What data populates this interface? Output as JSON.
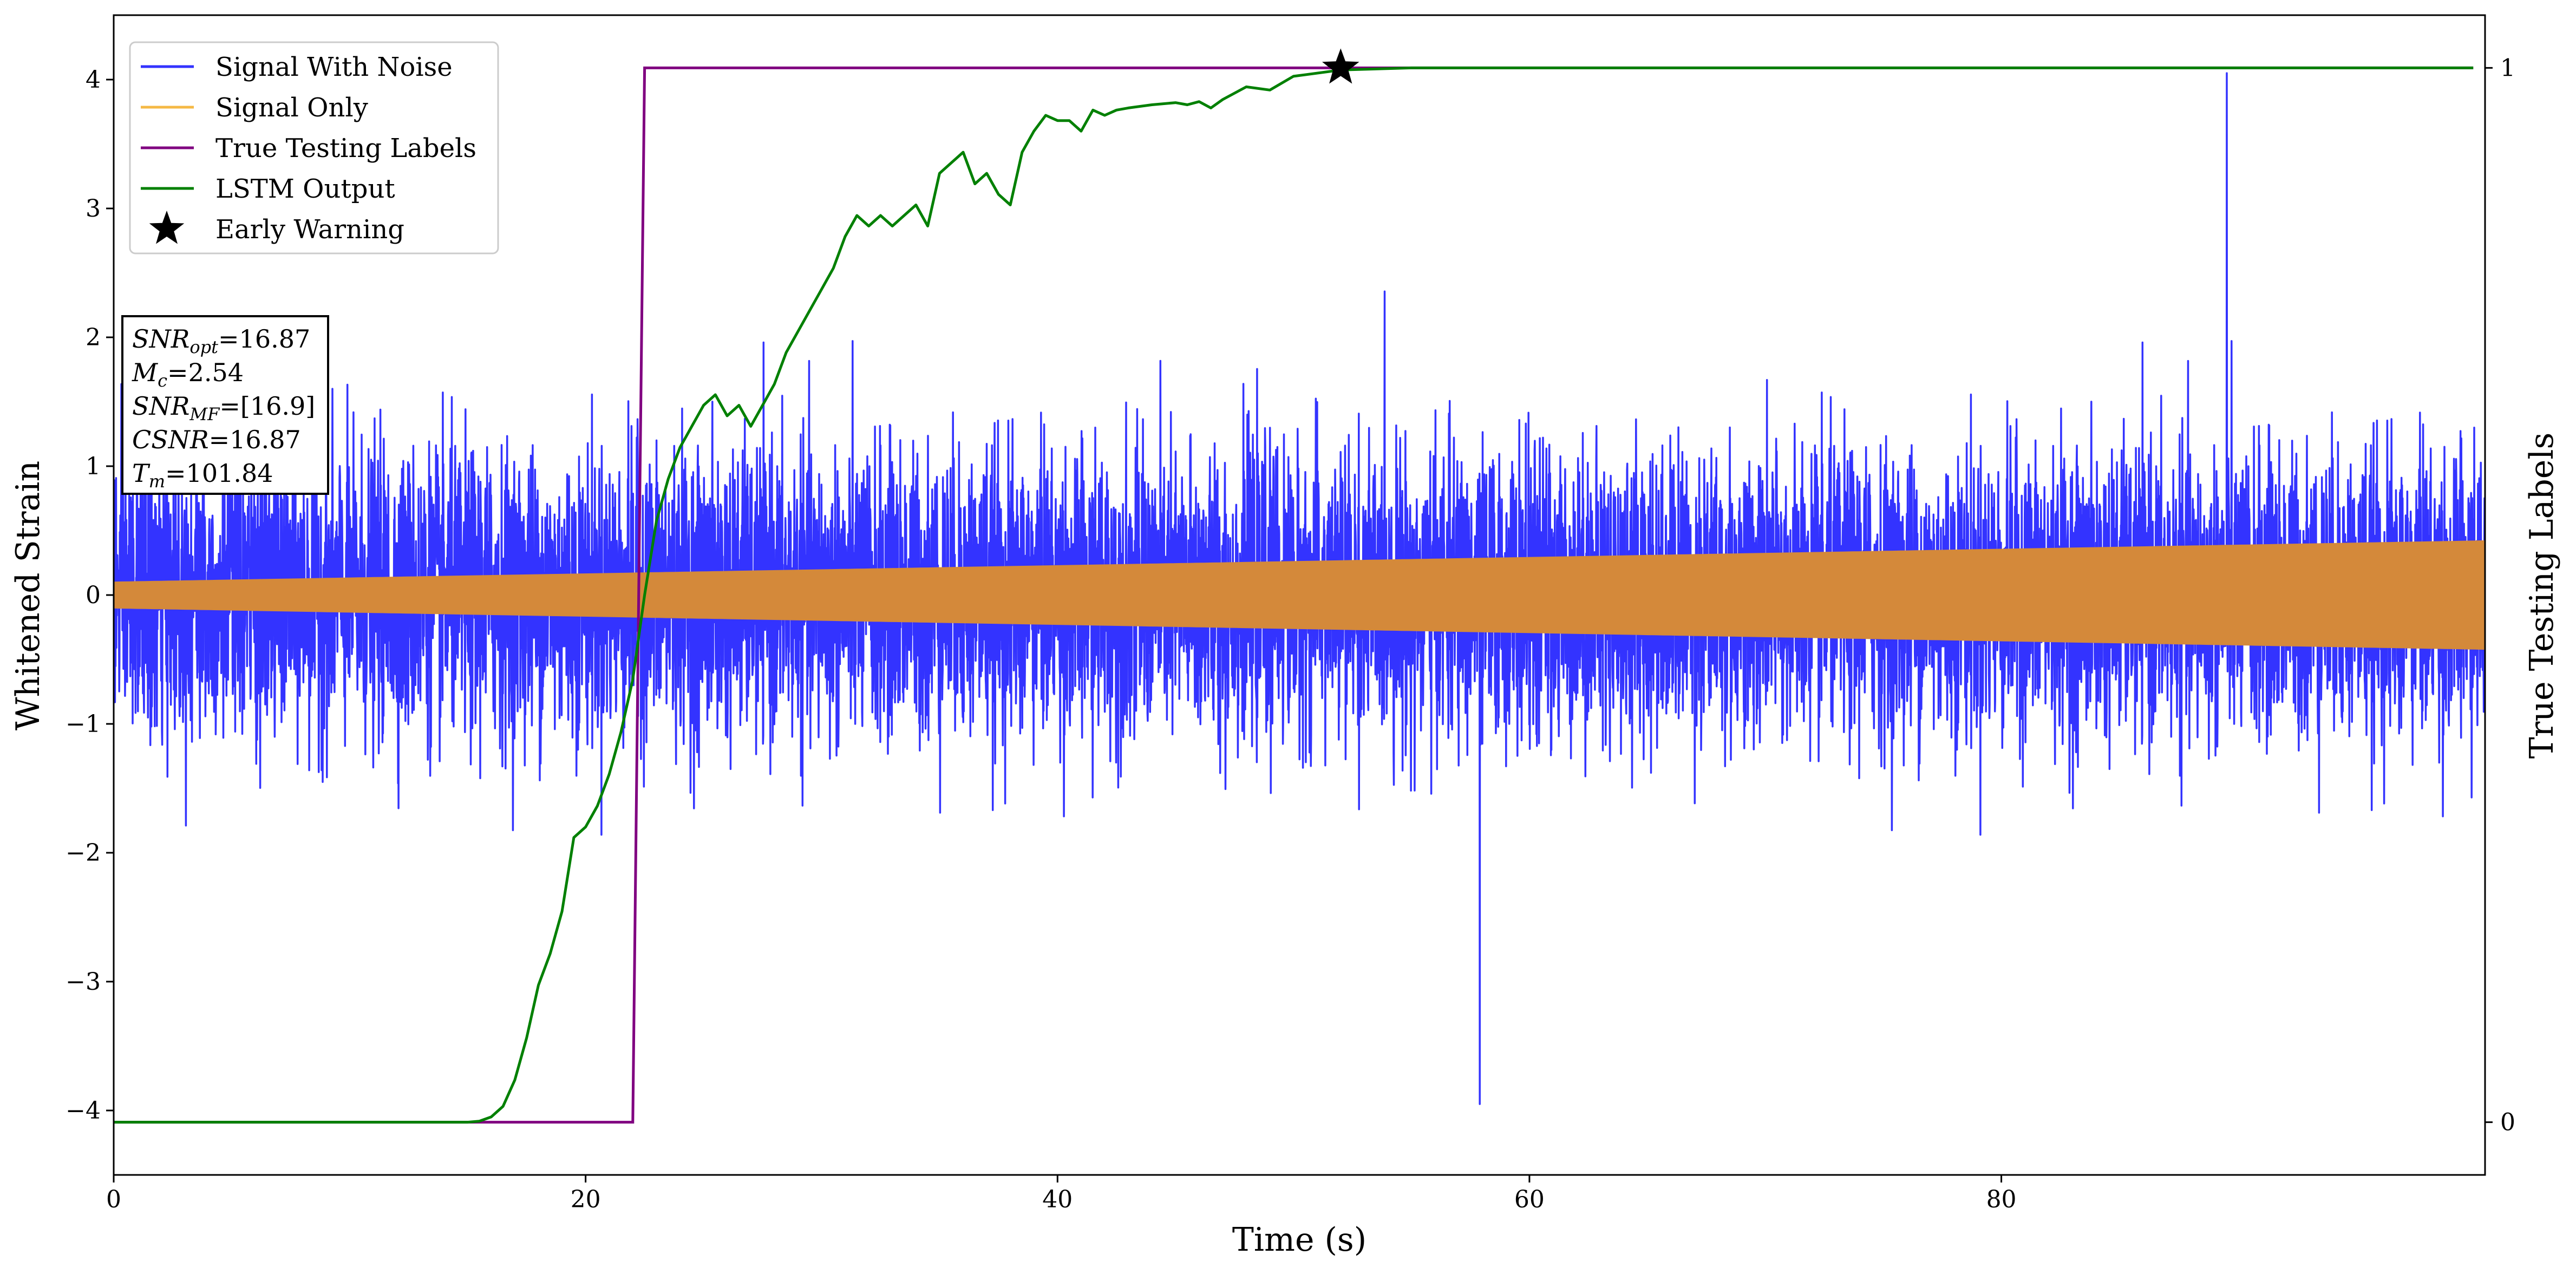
{
  "chart_data": {
    "type": "line",
    "xlabel": "Time (s)",
    "ylabel": "Whitened Strain",
    "y2label": "True Testing Labels",
    "xlim": [
      0,
      100.5
    ],
    "ylim": [
      -4.5,
      4.5
    ],
    "y2lim": [
      -0.05,
      1.05
    ],
    "x_ticks": [
      0,
      20,
      40,
      60,
      80
    ],
    "y_ticks": [
      -4,
      -3,
      -2,
      -1,
      0,
      1,
      2,
      3,
      4
    ],
    "y2_ticks": [
      0,
      1
    ],
    "tick_labels": {
      "x": [
        "0",
        "20",
        "40",
        "60",
        "80"
      ],
      "y": [
        "−4",
        "−3",
        "−2",
        "−1",
        "0",
        "1",
        "2",
        "3",
        "4"
      ],
      "y2": [
        "0",
        "1"
      ]
    },
    "grid": false,
    "legend_position": "upper-left",
    "legend": [
      {
        "label": "Signal With Noise",
        "color": "#3333ff",
        "marker": "line"
      },
      {
        "label": "Signal Only",
        "color": "#f5b945",
        "marker": "line"
      },
      {
        "label": "True Testing Labels",
        "color": "#800080",
        "marker": "line"
      },
      {
        "label": "LSTM Output",
        "color": "#008000",
        "marker": "line"
      },
      {
        "label": "Early Warning",
        "color": "#000000",
        "marker": "star"
      }
    ],
    "series": [
      {
        "name": "Signal With Noise",
        "axis": "left",
        "kind": "noise",
        "color": "#3333ff",
        "band_std": 0.55,
        "peak_max": 4.05,
        "peak_min": -3.95
      },
      {
        "name": "Signal Only",
        "axis": "left",
        "kind": "chirp-envelope",
        "color": "#d4893a",
        "amplitude_x": [
          0,
          100.5
        ],
        "amplitude_y": [
          0.1,
          0.42
        ]
      },
      {
        "name": "True Testing Labels",
        "axis": "right",
        "kind": "step",
        "color": "#800080",
        "x": [
          0,
          22,
          22.5,
          100
        ],
        "y": [
          0,
          0,
          1,
          1
        ]
      },
      {
        "name": "LSTM Output",
        "axis": "right",
        "kind": "line",
        "color": "#008000",
        "x": [
          0,
          15,
          15.5,
          16,
          16.5,
          17,
          17.5,
          18,
          18.5,
          19,
          19.5,
          20,
          20.5,
          21,
          21.5,
          22,
          22.5,
          23,
          23.5,
          24,
          24.5,
          25,
          25.5,
          26,
          26.5,
          27,
          27.5,
          28,
          28.5,
          29,
          29.5,
          30,
          30.5,
          31,
          31.5,
          32,
          32.5,
          33,
          33.5,
          34,
          34.5,
          35,
          35.5,
          36,
          36.5,
          37,
          37.5,
          38,
          38.5,
          39,
          39.5,
          40,
          40.5,
          41,
          41.5,
          42,
          42.5,
          43,
          44,
          45,
          45.5,
          46,
          46.5,
          47,
          48,
          49,
          50,
          52,
          55,
          100
        ],
        "y": [
          0,
          0,
          0.001,
          0.005,
          0.015,
          0.04,
          0.08,
          0.13,
          0.16,
          0.2,
          0.27,
          0.28,
          0.3,
          0.33,
          0.37,
          0.42,
          0.5,
          0.57,
          0.61,
          0.64,
          0.66,
          0.68,
          0.69,
          0.67,
          0.68,
          0.66,
          0.68,
          0.7,
          0.73,
          0.75,
          0.77,
          0.79,
          0.81,
          0.84,
          0.86,
          0.85,
          0.86,
          0.85,
          0.86,
          0.87,
          0.85,
          0.9,
          0.91,
          0.92,
          0.89,
          0.9,
          0.88,
          0.87,
          0.92,
          0.94,
          0.955,
          0.95,
          0.95,
          0.94,
          0.96,
          0.955,
          0.96,
          0.962,
          0.965,
          0.967,
          0.965,
          0.968,
          0.962,
          0.97,
          0.982,
          0.979,
          0.992,
          0.998,
          1.0,
          1.0
        ]
      }
    ],
    "markers": [
      {
        "name": "Early Warning",
        "axis": "right",
        "x": 52,
        "y": 1.0,
        "shape": "star",
        "color": "#000000"
      }
    ],
    "annotation_lines": [
      {
        "main": "SNR",
        "sub": "opt",
        "rest": "=16.87"
      },
      {
        "main": "M",
        "sub": "c",
        "rest": "=2.54"
      },
      {
        "main": "SNR",
        "sub": "MF",
        "rest": "=[16.9]"
      },
      {
        "main": "CSNR",
        "sub": "",
        "rest": "=16.87"
      },
      {
        "main": "T",
        "sub": "m",
        "rest": "=101.84"
      }
    ]
  }
}
